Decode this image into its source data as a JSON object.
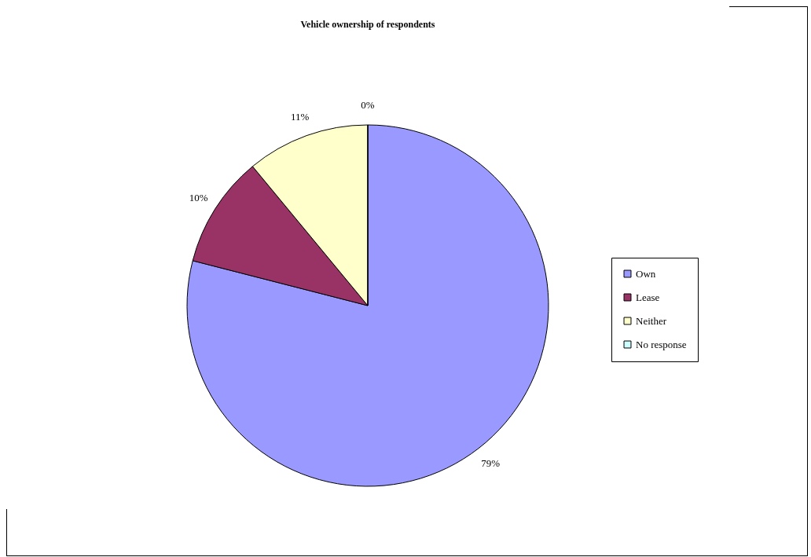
{
  "chart_data": {
    "type": "pie",
    "title": "Vehicle ownership of respondents",
    "categories": [
      "Own",
      "Lease",
      "Neither",
      "No response"
    ],
    "values": [
      79,
      10,
      11,
      0
    ],
    "value_labels": [
      "79%",
      "10%",
      "11%",
      "0%"
    ],
    "colors": [
      "#9999ff",
      "#993366",
      "#ffffcc",
      "#ccffff"
    ],
    "legend": "right"
  }
}
